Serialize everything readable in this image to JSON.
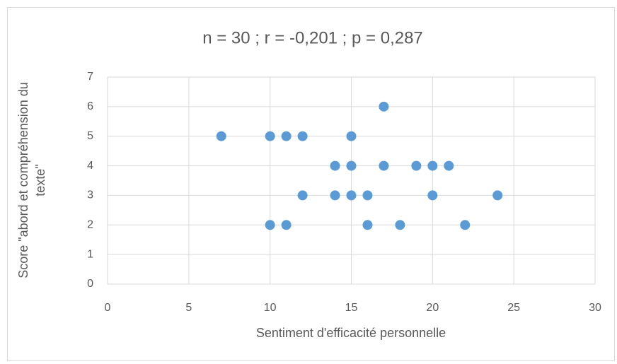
{
  "chart_data": {
    "type": "scatter",
    "title": "n = 30 ; r = -0,201 ; p = 0,287",
    "xlabel": "Sentiment d'efficacité personnelle",
    "ylabel": [
      "Score \"abord et compréhension du",
      "texte\""
    ],
    "series": [
      {
        "name": "Score",
        "color": "#5b9bd5",
        "x": [
          7,
          10,
          11,
          12,
          15,
          17,
          14,
          15,
          17,
          19,
          20,
          21,
          12,
          14,
          15,
          16,
          20,
          24,
          10,
          11,
          16,
          18,
          22
        ],
        "values": [
          5,
          5,
          5,
          5,
          5,
          6,
          4,
          4,
          4,
          4,
          4,
          4,
          3,
          3,
          3,
          3,
          3,
          3,
          2,
          2,
          2,
          2,
          2
        ]
      }
    ],
    "xlim": [
      0,
      30
    ],
    "xticks": [
      0,
      5,
      10,
      15,
      20,
      25,
      30
    ],
    "ylim": [
      0,
      7
    ],
    "yticks": [
      0,
      1,
      2,
      3,
      4,
      5,
      6,
      7
    ],
    "grid": true
  }
}
